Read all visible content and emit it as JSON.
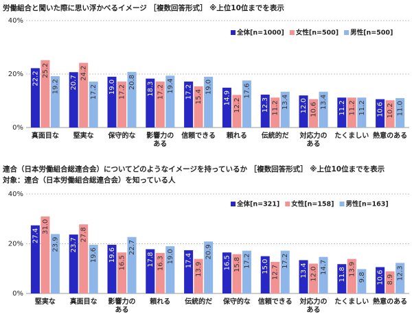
{
  "chart_data": [
    {
      "type": "bar",
      "title": "労働組合と聞いた際に思い浮かべるイメージ ［複数回答形式］ ※上位10位までを表示",
      "categories": [
        "真面目な",
        "堅実な",
        "保守的な",
        "影響力のある",
        "信頼できる",
        "頼れる",
        "伝統的だ",
        "対応力のある",
        "たくましい",
        "熱意のある"
      ],
      "series": [
        {
          "name": "全体[n=1000]",
          "color": "#2727c4",
          "values": [
            22.2,
            20.7,
            19.0,
            18.3,
            17.2,
            14.9,
            12.3,
            12.0,
            11.2,
            10.6
          ],
          "value_labels": [
            "22.2",
            "20.7",
            "19.0",
            "18.3",
            "17.2",
            "14.9",
            "12.3",
            "12.0",
            "11.2",
            "10.6"
          ]
        },
        {
          "name": "女性[n=500]",
          "color": "#f29393",
          "values": [
            25.2,
            24.2,
            17.2,
            17.2,
            15.4,
            12.2,
            11.2,
            10.6,
            11.2,
            10.2
          ],
          "value_labels": [
            "25.2",
            "24.2",
            "17.2",
            "17.2",
            "15.4",
            "12.2",
            "11.2",
            "10.6",
            "11.2",
            "10.2"
          ]
        },
        {
          "name": "男性[n=500]",
          "color": "#8fb6e8",
          "values": [
            19.2,
            17.2,
            20.8,
            19.4,
            19.0,
            17.6,
            13.4,
            13.4,
            11.2,
            11.0
          ],
          "value_labels": [
            "19.2",
            "17.2",
            "20.8",
            "19.4",
            "19.0",
            "17.6",
            "13.4",
            "13.4",
            "11.2",
            "11.0"
          ]
        }
      ],
      "ylim": [
        0,
        40
      ],
      "yticks": [
        {
          "value": 0,
          "label": "0%"
        },
        {
          "value": 20,
          "label": "20%"
        },
        {
          "value": 40,
          "label": "40%"
        }
      ],
      "grid": true,
      "legend": "upper right"
    },
    {
      "type": "bar",
      "title": "連合（日本労働組合総連合会）についてどのようなイメージを持っているか ［複数回答形式］ ※上位10位までを表示",
      "subtitle": "対象：連合（日本労働組合総連合会）を知っている人",
      "categories": [
        "堅実な",
        "真面目な",
        "影響力のある",
        "頼れる",
        "伝統的だ",
        "保守的な",
        "信頼できる",
        "対応力のある",
        "たくましい",
        "熱意のある"
      ],
      "series": [
        {
          "name": "全体[n=321]",
          "color": "#2727c4",
          "values": [
            27.4,
            23.7,
            19.6,
            17.8,
            17.4,
            16.5,
            15.0,
            13.4,
            11.8,
            10.6
          ],
          "value_labels": [
            "27.4",
            "23.7",
            "19.6",
            "17.8",
            "17.4",
            "16.5",
            "15.0",
            "13.4",
            "11.8",
            "10.6"
          ]
        },
        {
          "name": "女性[n=158]",
          "color": "#f29393",
          "values": [
            31.0,
            27.8,
            16.5,
            16.3,
            13.9,
            15.8,
            12.7,
            12.0,
            13.9,
            8.9
          ],
          "value_labels": [
            "31.0",
            "27.8",
            "16.5",
            "16.3",
            "13.9",
            "15.8",
            "12.7",
            "12.0",
            "13.9",
            "8.9"
          ]
        },
        {
          "name": "男性[n=163]",
          "color": "#8fb6e8",
          "values": [
            23.9,
            19.6,
            22.7,
            19.0,
            20.9,
            17.2,
            17.2,
            14.7,
            9.8,
            12.3
          ],
          "value_labels": [
            "23.9",
            "19.6",
            "22.7",
            "19.0",
            "20.9",
            "17.2",
            "17.2",
            "14.7",
            "9.8",
            "12.3"
          ]
        }
      ],
      "ylim": [
        0,
        40
      ],
      "yticks": [
        {
          "value": 0,
          "label": "0%"
        },
        {
          "value": 20,
          "label": "20%"
        },
        {
          "value": 40,
          "label": "40%"
        }
      ],
      "grid": true,
      "legend": "upper right"
    }
  ]
}
